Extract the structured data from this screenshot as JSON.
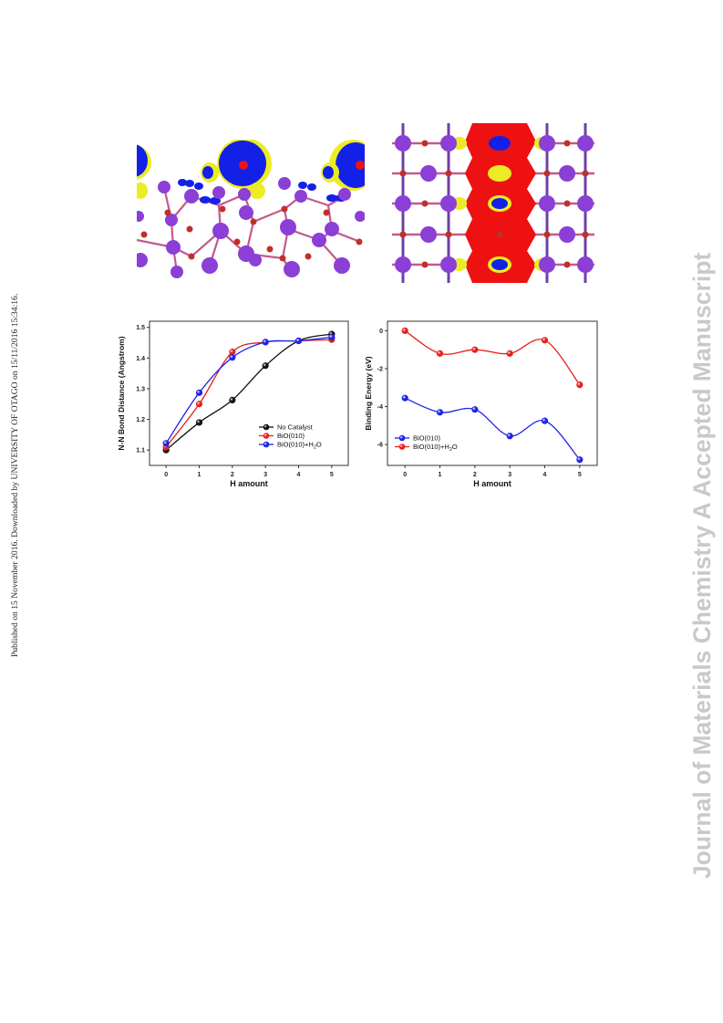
{
  "margin_left_text": "Published on 15 November 2016. Downloaded by UNIVERSITY OF OTAGO on 15/11/2016 15:34:16.",
  "margin_right_text": "Journal of Materials Chemistry A Accepted Manuscript",
  "colors": {
    "bi_atom": "#8b3fd6",
    "o_atom": "#c0302a",
    "charge_blue": "#1320e8",
    "charge_red": "#ee1111",
    "charge_yellow": "#ecec24",
    "no_catalyst": "#111111",
    "bio010": "#e8201c",
    "bio010_h2o": "#1f24e8"
  },
  "chart_data": [
    {
      "type": "line",
      "xlabel": "H amount",
      "ylabel": "N-N Bond Distance (Angstrom)",
      "xlim": [
        -0.5,
        5.5
      ],
      "ylim": [
        1.05,
        1.52
      ],
      "x_ticks": [
        0,
        1,
        2,
        3,
        4,
        5
      ],
      "y_ticks": [
        1.1,
        1.2,
        1.3,
        1.4,
        1.5
      ],
      "y_tick_labels": [
        "1.1",
        "1.2",
        "1.3",
        "1.4",
        "1.5"
      ],
      "legend_position": "bottom-right",
      "x": [
        0,
        1,
        2,
        3,
        4,
        5
      ],
      "series": [
        {
          "name": "No Catalyst",
          "color": "#111111",
          "values": [
            1.1,
            1.19,
            1.263,
            1.375,
            1.456,
            1.478
          ]
        },
        {
          "name": "BiO(010)",
          "color": "#e8201c",
          "values": [
            1.11,
            1.25,
            1.42,
            1.452,
            1.456,
            1.46
          ]
        },
        {
          "name": "BiO(010)+H",
          "name_sub": "2",
          "name_tail": "O",
          "color": "#1f24e8",
          "values": [
            1.122,
            1.287,
            1.402,
            1.452,
            1.456,
            1.468
          ]
        }
      ]
    },
    {
      "type": "line",
      "xlabel": "H amount",
      "ylabel": "Binding Energy (eV)",
      "xlim": [
        -0.5,
        5.5
      ],
      "ylim": [
        -7.1,
        0.5
      ],
      "x_ticks": [
        0,
        1,
        2,
        3,
        4,
        5
      ],
      "y_ticks": [
        0,
        -2,
        -4,
        -6
      ],
      "y_tick_labels": [
        "0",
        "-2",
        "-4",
        "-6"
      ],
      "legend_position": "bottom-left",
      "x": [
        0,
        1,
        2,
        3,
        4,
        5
      ],
      "series": [
        {
          "name": "BiO(010)",
          "color": "#1f24e8",
          "values": [
            -3.55,
            -4.3,
            -4.15,
            -5.55,
            -4.75,
            -6.8
          ]
        },
        {
          "name": "BiO(010)+H",
          "name_sub": "2",
          "name_tail": "O",
          "color": "#e8201c",
          "values": [
            0.0,
            -1.2,
            -1.0,
            -1.2,
            -0.5,
            -2.85
          ]
        }
      ]
    }
  ]
}
